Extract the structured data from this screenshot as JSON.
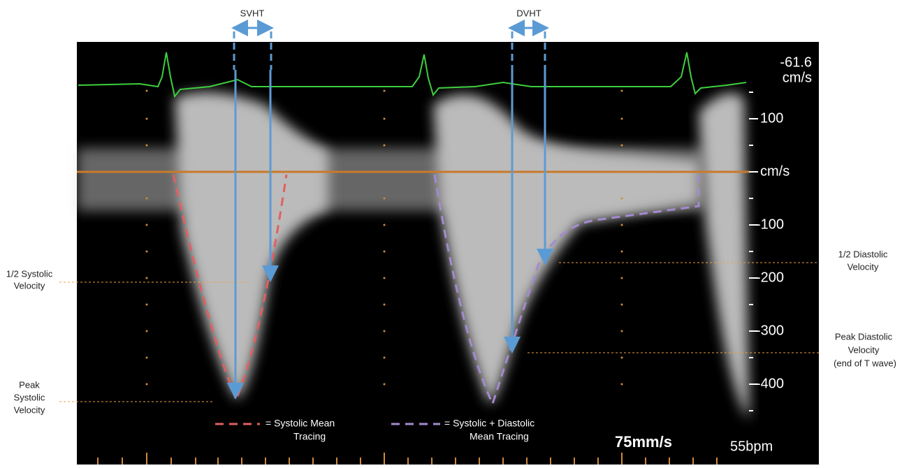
{
  "arrows": {
    "systolic": "SVHT",
    "diastolic": "DVHT"
  },
  "monitor": {
    "reading": -61.6,
    "reading_unit": "cm/s",
    "scale_unit": "cm/s",
    "scale_labels": [
      100,
      -100,
      -200,
      -300,
      -400
    ],
    "sweep_speed": "75mm/s",
    "heart_rate": "55bpm"
  },
  "annotations": {
    "half_systolic": [
      "1/2 Systolic",
      "Velocity"
    ],
    "peak_systolic": [
      "Peak",
      "Systolic",
      "Velocity"
    ],
    "half_diastolic": [
      "1/2 Diastolic",
      "Velocity"
    ],
    "peak_diastolic": [
      "Peak Diastolic",
      "Velocity",
      "(end of T wave)"
    ]
  },
  "legend": {
    "systolic": [
      "= Systolic Mean",
      "Tracing"
    ],
    "combined": [
      "= Systolic + Diastolic",
      "Mean Tracing"
    ]
  }
}
